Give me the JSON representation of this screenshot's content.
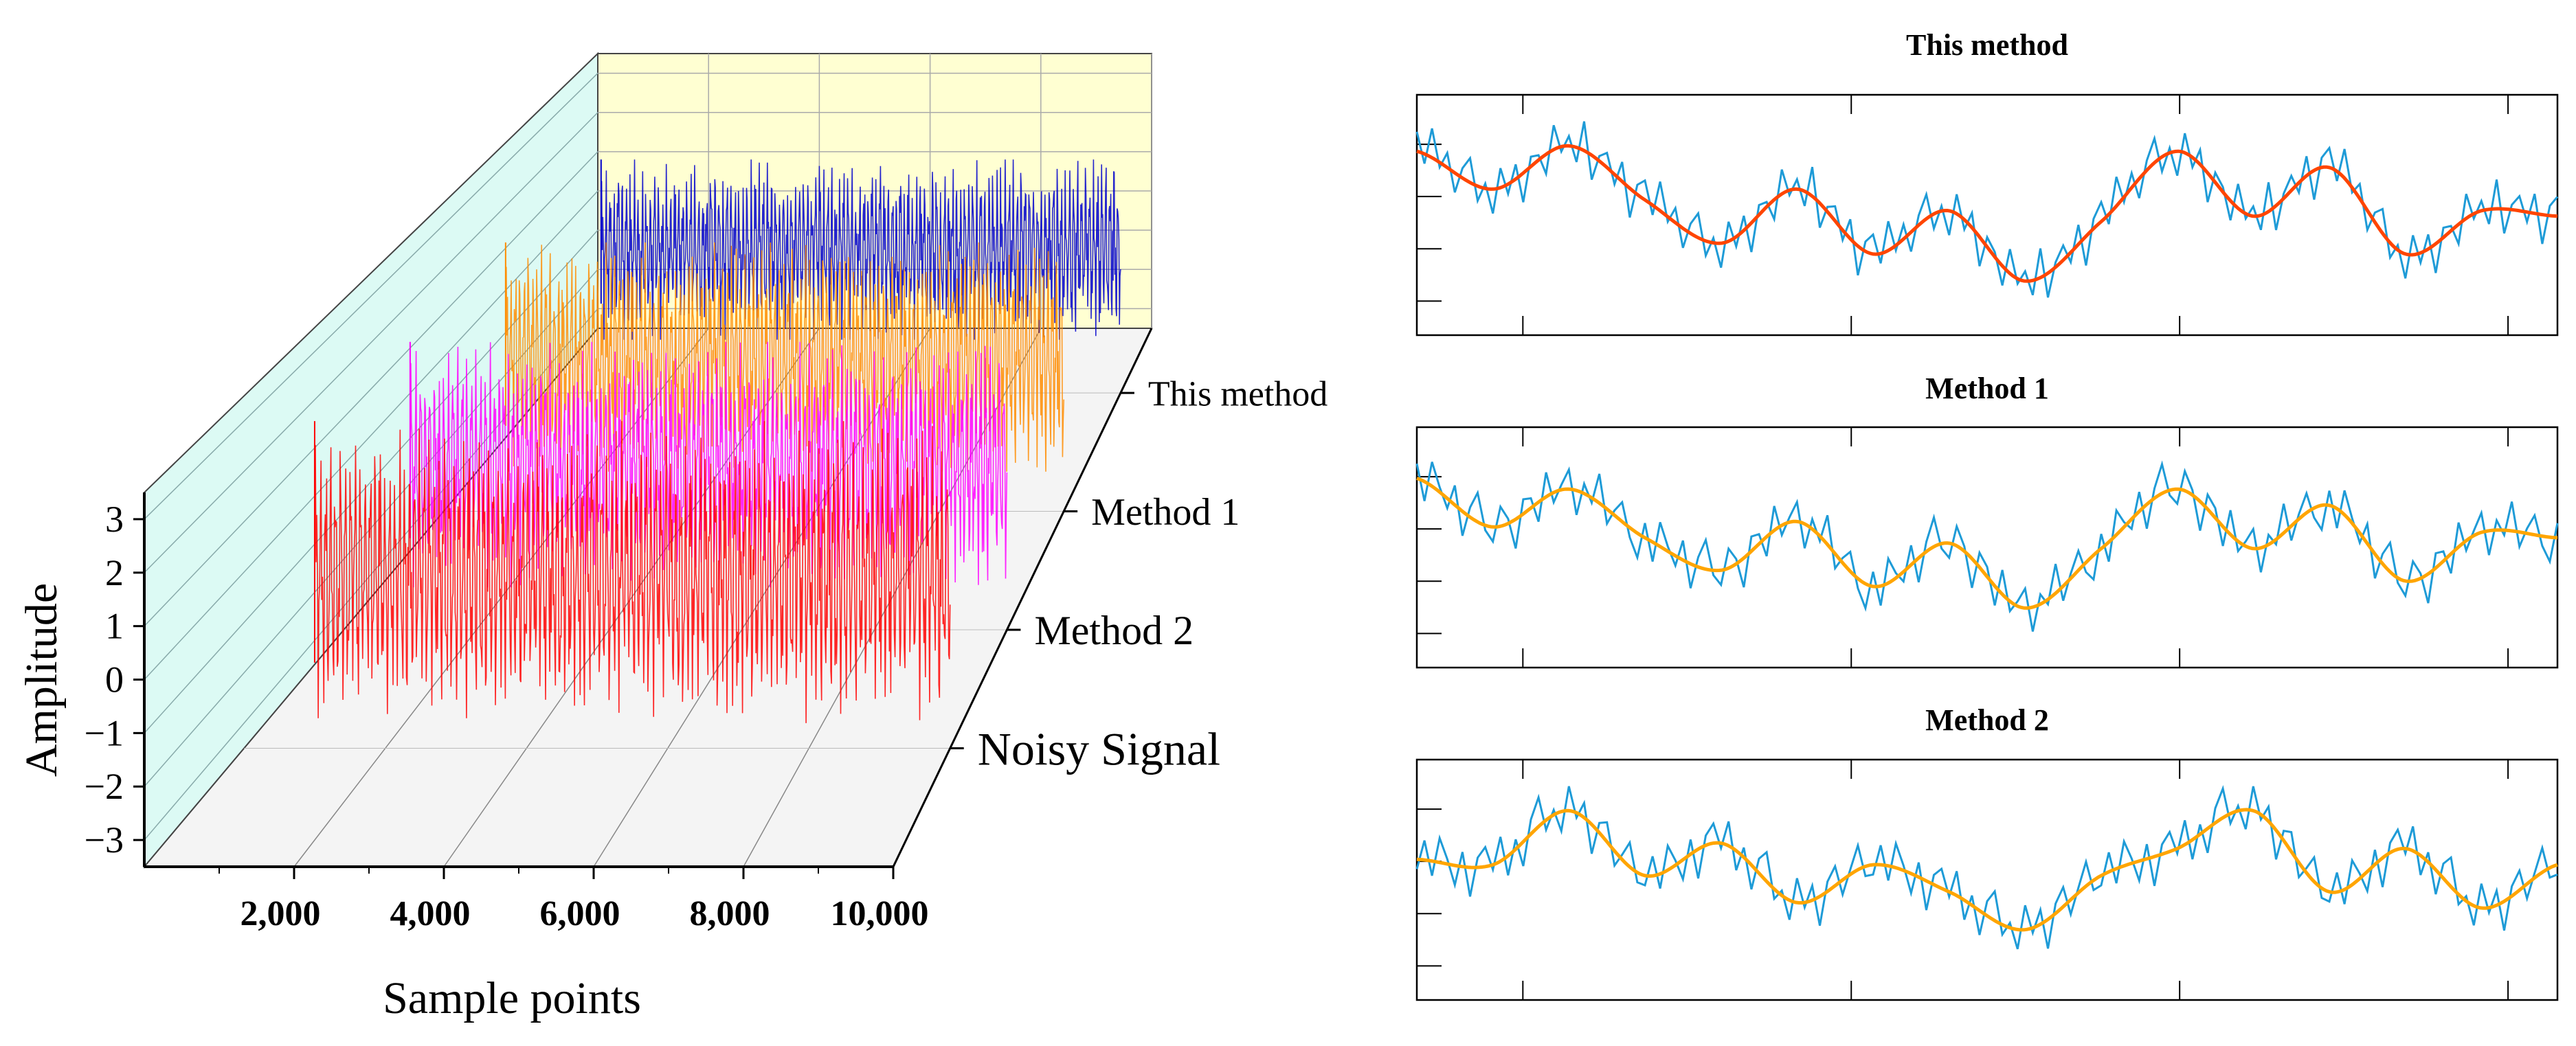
{
  "chart_data": [
    {
      "type": "line",
      "subtype": "3d-waterfall",
      "title": "",
      "xlabel": "Sample points",
      "ylabel": "Amplitude",
      "xlim": [
        0,
        10000
      ],
      "ylim": [
        -3.5,
        3.5
      ],
      "x_ticks": [
        "2,000",
        "4,000",
        "6,000",
        "8,000",
        "10,000"
      ],
      "y_ticks": [
        "3",
        "2",
        "1",
        "0",
        "−1",
        "−2",
        "−3"
      ],
      "series": [
        {
          "name": "Noisy Signal",
          "color": "#ff0000",
          "x_range": [
            1000,
            10000
          ],
          "peak_amplitude": 3.0
        },
        {
          "name": "Method 2",
          "color": "#ff00ff",
          "x_range": [
            1000,
            10000
          ],
          "peak_amplitude": 2.6
        },
        {
          "name": "Method 1",
          "color": "#ff8c00",
          "x_range": [
            1000,
            10000
          ],
          "peak_amplitude": 2.6
        },
        {
          "name": "This method",
          "color": "#0000cd",
          "x_range": [
            1000,
            10000
          ],
          "peak_amplitude": 2.2
        }
      ]
    },
    {
      "type": "line",
      "title": "This method",
      "xlabel": "",
      "ylabel": "",
      "noisy_color": "#1e9bd7",
      "smooth_color": "#ff4500",
      "smooth_knots": [
        0.5,
        0.15,
        0.55,
        0.05,
        -0.35,
        0.15,
        -0.45,
        -0.05,
        -0.7,
        -0.15,
        0.5,
        -0.1,
        0.35,
        -0.45,
        -0.05,
        -0.1
      ],
      "noisy_offsets": [
        0.2,
        -0.1,
        0.3,
        -0.05,
        0.15,
        -0.2,
        0.1,
        0.25,
        -0.15,
        0.05,
        -0.25,
        0.2,
        -0.1,
        0.15,
        -0.3,
        0.1,
        0.05,
        -0.2,
        0.25,
        -0.05,
        0.1,
        -0.15,
        0.3,
        -0.25,
        0.05,
        0.15,
        -0.1,
        0.2,
        -0.3,
        0.1
      ]
    },
    {
      "type": "line",
      "title": "Method 1",
      "xlabel": "",
      "ylabel": "",
      "noisy_color": "#1e9bd7",
      "smooth_color": "#ffa500",
      "smooth_knots": [
        0.55,
        0.1,
        0.45,
        0.0,
        -0.3,
        0.15,
        -0.45,
        -0.05,
        -0.65,
        -0.1,
        0.45,
        -0.1,
        0.3,
        -0.4,
        0.05,
        0.0
      ],
      "noisy_offsets": [
        0.15,
        -0.2,
        0.25,
        0.05,
        -0.1,
        0.2,
        -0.25,
        0.1,
        0.3,
        -0.05,
        -0.15,
        0.2,
        0.05,
        -0.3,
        0.15,
        0.1,
        -0.2,
        0.25,
        -0.1,
        0.05,
        0.2,
        -0.25,
        0.1,
        -0.05,
        0.3,
        -0.15,
        0.05,
        0.2,
        -0.1,
        -0.25
      ]
    },
    {
      "type": "line",
      "title": "Method 2",
      "xlabel": "",
      "ylabel": "",
      "noisy_color": "#1e9bd7",
      "smooth_color": "#ffa500",
      "smooth_knots": [
        0.1,
        0.05,
        0.55,
        -0.05,
        0.25,
        -0.3,
        0.05,
        -0.2,
        -0.55,
        -0.05,
        0.2,
        0.55,
        -0.2,
        0.2,
        -0.35,
        0.05
      ],
      "noisy_offsets": [
        -0.1,
        0.2,
        -0.15,
        0.25,
        0.05,
        -0.2,
        0.15,
        -0.3,
        0.1,
        0.2,
        -0.05,
        0.25,
        -0.2,
        0.1,
        -0.25,
        0.15,
        0.3,
        -0.1,
        0.05,
        -0.2,
        0.25,
        -0.05,
        0.15,
        -0.3,
        0.1,
        0.2,
        -0.15,
        0.05,
        0.25,
        -0.1
      ]
    }
  ]
}
